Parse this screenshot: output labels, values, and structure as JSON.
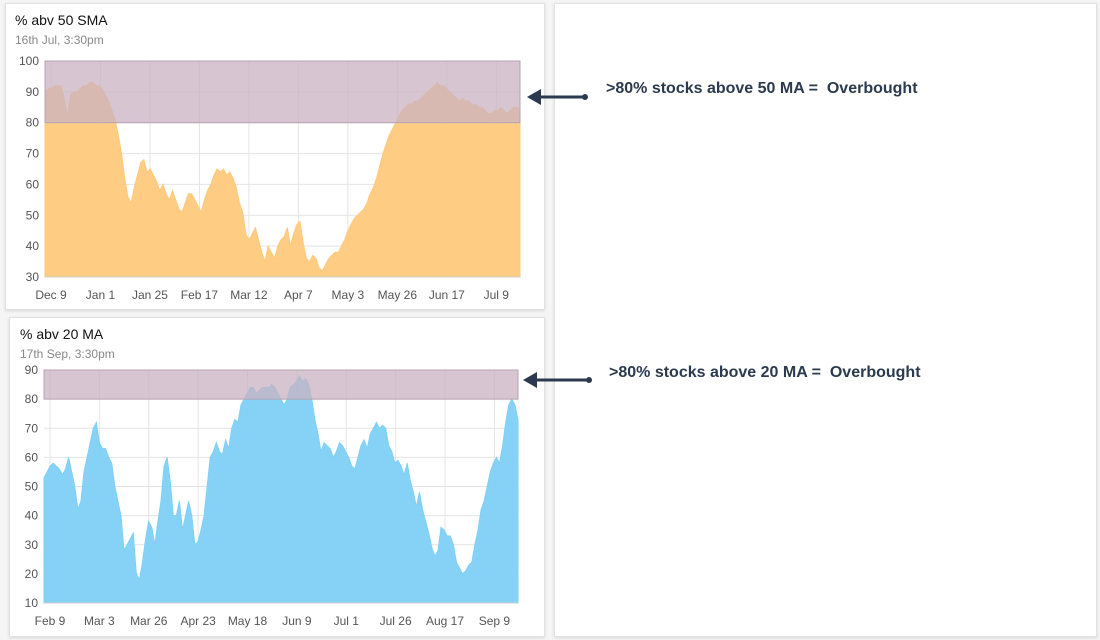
{
  "colors": {
    "overbought_zone": "#c9b3c2",
    "sma50_fill": "#ffc97d",
    "ma20_fill": "#7fd0f5",
    "annotation_text": "#2b3a4e",
    "arrow": "#2b3a4e"
  },
  "chart_top": {
    "title": "% abv 50 SMA",
    "subtitle": "16th Jul, 3:30pm",
    "annotation": ">80% stocks above 50 MA =  Overbought"
  },
  "chart_bottom": {
    "title": "% abv 20 MA",
    "subtitle": "17th Sep, 3:30pm",
    "annotation": ">80% stocks above 20 MA =  Overbought"
  },
  "chart_data": [
    {
      "type": "area",
      "title": "% abv 50 SMA",
      "subtitle": "16th Jul, 3:30pm",
      "x_tick_labels": [
        "Dec 9",
        "Jan 1",
        "Jan 25",
        "Feb 17",
        "Mar 12",
        "Apr 7",
        "May 3",
        "May 26",
        "Jun 17",
        "Jul 9"
      ],
      "y_tick_labels": [
        30,
        40,
        50,
        60,
        70,
        80,
        90,
        100
      ],
      "ylim": [
        30,
        100
      ],
      "grid": true,
      "overbought_band": [
        80,
        100
      ],
      "x_range_positions": [
        0,
        154
      ],
      "values": [
        90,
        91,
        91,
        92,
        92,
        92,
        88,
        82,
        89,
        90,
        90,
        91,
        92,
        92,
        93,
        93,
        92,
        92,
        91,
        89,
        87,
        84,
        81,
        76,
        70,
        62,
        56,
        54,
        59,
        63,
        67,
        68,
        64,
        65,
        63,
        61,
        58,
        60,
        57,
        55,
        58,
        55,
        52,
        51,
        54,
        57,
        57,
        55,
        53,
        51,
        55,
        58,
        60,
        63,
        65,
        64,
        65,
        63,
        64,
        62,
        59,
        54,
        51,
        44,
        42,
        44,
        46,
        42,
        38,
        35,
        40,
        38,
        36,
        40,
        42,
        43,
        46,
        40,
        44,
        47,
        48,
        41,
        36,
        35,
        37,
        36,
        33,
        32,
        34,
        36,
        37,
        38,
        38,
        40,
        42,
        45,
        47,
        49,
        50,
        51,
        52,
        54,
        57,
        59,
        62,
        66,
        70,
        73,
        76,
        78,
        80,
        82,
        84,
        85,
        86,
        86,
        87,
        87,
        88,
        89,
        90,
        91,
        92,
        93,
        92,
        92,
        91,
        90,
        89,
        88,
        87,
        88,
        87,
        87,
        86,
        86,
        85,
        85,
        84,
        83,
        83,
        84,
        84,
        85,
        84,
        83,
        84,
        85,
        85,
        84
      ]
    },
    {
      "type": "area",
      "title": "% abv 20 MA",
      "subtitle": "17th Sep, 3:30pm",
      "x_tick_labels": [
        "Feb 9",
        "Mar 3",
        "Mar 26",
        "Apr 23",
        "May 18",
        "Jun 9",
        "Jul 1",
        "Jul 26",
        "Aug 17",
        "Sep 9"
      ],
      "y_tick_labels": [
        10,
        20,
        30,
        40,
        50,
        60,
        70,
        80,
        90
      ],
      "ylim": [
        10,
        90
      ],
      "grid": true,
      "overbought_band": [
        80,
        90
      ],
      "values": [
        53,
        55,
        57,
        58,
        57,
        56,
        54,
        56,
        60,
        55,
        50,
        42,
        45,
        55,
        60,
        65,
        70,
        72,
        65,
        63,
        63,
        60,
        58,
        50,
        45,
        40,
        28,
        30,
        32,
        34,
        20,
        18,
        24,
        32,
        38,
        36,
        30,
        38,
        45,
        57,
        60,
        52,
        40,
        40,
        45,
        35,
        40,
        45,
        40,
        30,
        31,
        35,
        40,
        50,
        60,
        62,
        65,
        62,
        61,
        66,
        63,
        70,
        73,
        72,
        78,
        80,
        82,
        84,
        84,
        82,
        83,
        84,
        84,
        84,
        85,
        84,
        82,
        80,
        78,
        80,
        84,
        85,
        86,
        88,
        86,
        87,
        85,
        80,
        73,
        68,
        62,
        65,
        64,
        63,
        60,
        62,
        65,
        64,
        62,
        60,
        57,
        56,
        60,
        64,
        66,
        63,
        68,
        70,
        72,
        70,
        71,
        70,
        64,
        62,
        58,
        59,
        57,
        54,
        58,
        52,
        48,
        43,
        48,
        42,
        38,
        34,
        29,
        26,
        28,
        36,
        35,
        33,
        33,
        30,
        24,
        22,
        20,
        21,
        23,
        24,
        30,
        35,
        42,
        45,
        50,
        55,
        58,
        60,
        58,
        64,
        72,
        78,
        80,
        78,
        73
      ]
    }
  ]
}
